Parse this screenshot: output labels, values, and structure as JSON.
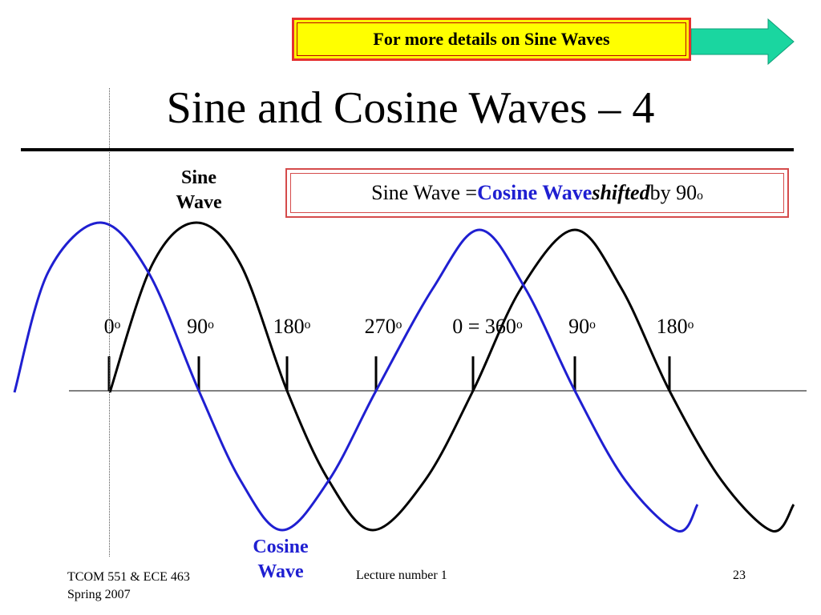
{
  "link": {
    "label": "For more details on Sine Waves"
  },
  "title": "Sine and Cosine Waves – 4",
  "equation": {
    "prefix": "Sine Wave = ",
    "cosine": "Cosine Wave",
    "space": " ",
    "shifted": "shifted",
    "suffix": " by 90",
    "degree": "o"
  },
  "sine_label": [
    "Sine",
    "Wave"
  ],
  "cosine_label": [
    "Cosine",
    "Wave"
  ],
  "ticks": [
    {
      "text": "0",
      "sup": "o"
    },
    {
      "text": "90",
      "sup": "o"
    },
    {
      "text": "180",
      "sup": "o"
    },
    {
      "text": "270",
      "sup": "o"
    },
    {
      "text": "0 = 360",
      "sup": "o"
    },
    {
      "text": "90",
      "sup": "o"
    },
    {
      "text": "180",
      "sup": "o"
    }
  ],
  "footer": {
    "course": "TCOM 551 & ECE 463",
    "term": "Spring 2007",
    "lecture": "Lecture number 1",
    "page": "23"
  },
  "colors": {
    "sine": "#000000",
    "cosine": "#1f1fd1",
    "arrow": "#1ad6a0",
    "link_bg": "#ffff00",
    "link_border": "#e53030"
  }
}
